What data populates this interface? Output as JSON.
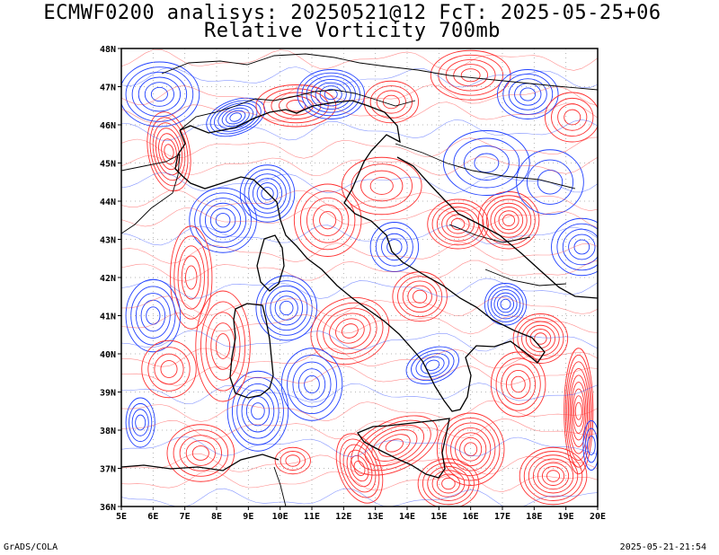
{
  "title": {
    "line1": "ECMWF0200 analisys: 20250521@12 FcT: 2025-05-25+06",
    "line2": "Relative Vorticity 700mb"
  },
  "map": {
    "lon_range": [
      5,
      20
    ],
    "lat_range": [
      36,
      48
    ],
    "x_ticks": [
      "5E",
      "6E",
      "7E",
      "8E",
      "9E",
      "10E",
      "11E",
      "12E",
      "13E",
      "14E",
      "15E",
      "16E",
      "17E",
      "18E",
      "19E",
      "20E"
    ],
    "y_ticks": [
      "48N",
      "47N",
      "46N",
      "45N",
      "44N",
      "43N",
      "42N",
      "41N",
      "40N",
      "39N",
      "38N",
      "37N",
      "36N"
    ],
    "colors": {
      "positive": "#ff3030",
      "negative": "#2040ff",
      "coast": "#000000",
      "grid": "#a0a0a0"
    }
  },
  "footer": {
    "left": "GrADS/COLA",
    "right": "2025-05-21-21:54"
  }
}
